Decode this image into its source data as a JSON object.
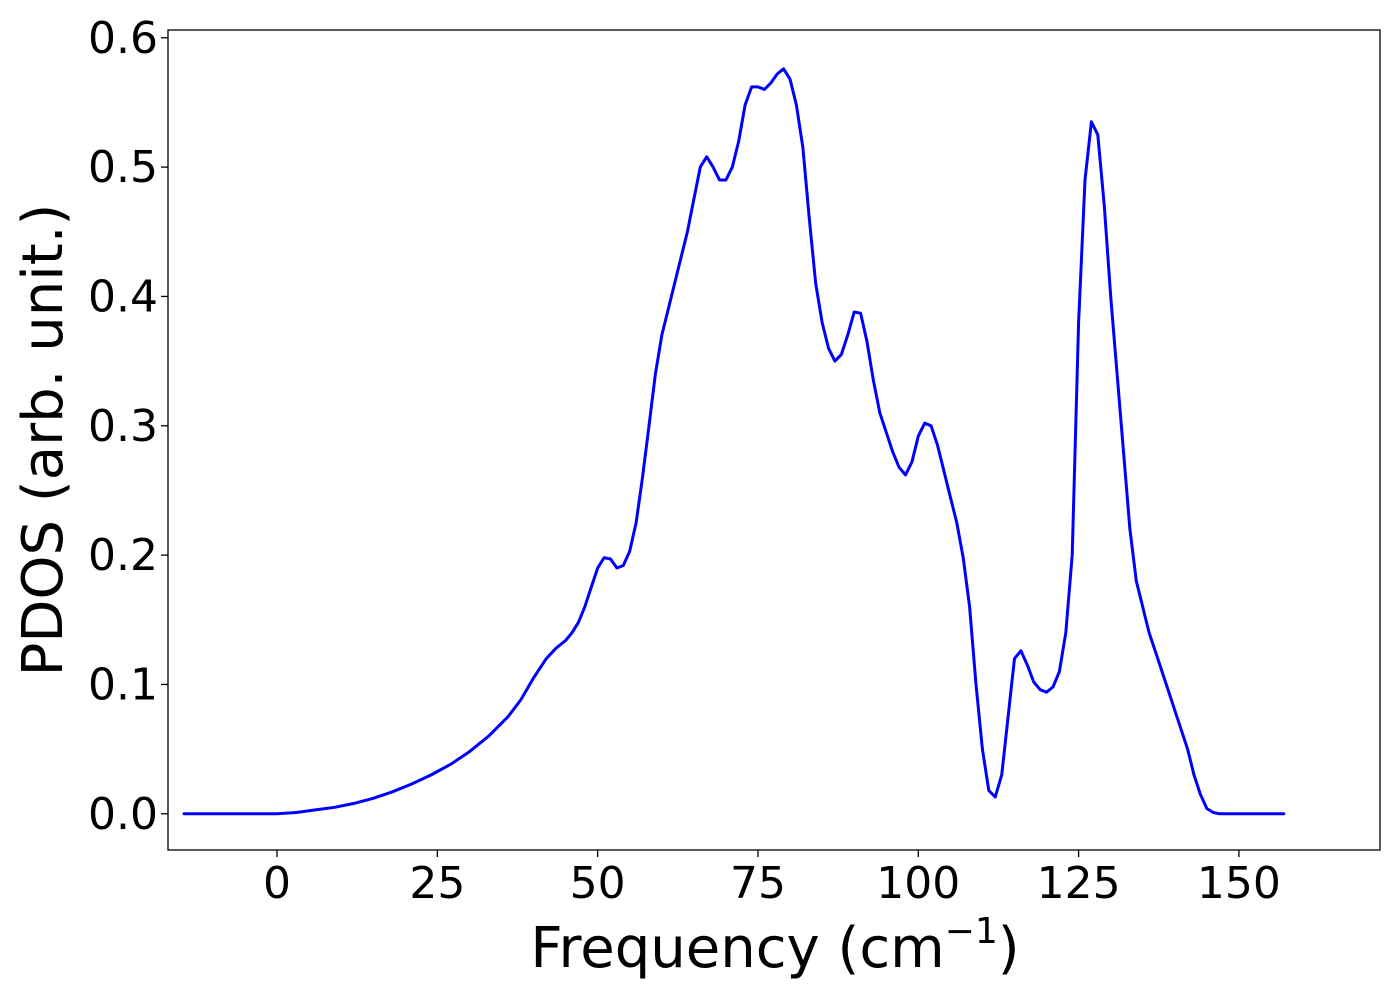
{
  "chart_data": {
    "type": "line",
    "title": "",
    "xlabel": "Frequency (cm",
    "xlabel_superscript": "−1",
    "xlabel_close": ")",
    "ylabel": "PDOS (arb. unit.)",
    "xlim": [
      -17,
      172
    ],
    "ylim": [
      -0.028,
      0.606
    ],
    "x_ticks": [
      0,
      25,
      50,
      75,
      100,
      125,
      150
    ],
    "y_ticks": [
      0.0,
      0.1,
      0.2,
      0.3,
      0.4,
      0.5,
      0.6
    ],
    "x_tick_labels": [
      "0",
      "25",
      "50",
      "75",
      "100",
      "125",
      "150"
    ],
    "y_tick_labels": [
      "0.0",
      "0.1",
      "0.2",
      "0.3",
      "0.4",
      "0.5",
      "0.6"
    ],
    "grid": false,
    "legend": "none",
    "series": [
      {
        "color": "#0000ff",
        "x": [
          -14.5,
          -10,
          -5,
          0,
          3,
          6,
          9,
          12,
          15,
          18,
          21,
          24,
          27,
          30,
          33,
          36,
          38,
          40,
          42,
          43.5,
          45,
          46,
          47,
          48,
          49,
          50,
          51,
          52,
          53,
          54,
          55,
          56,
          57,
          58,
          59,
          60,
          61,
          62,
          63,
          64,
          65,
          66,
          67,
          68,
          69,
          70,
          71,
          72,
          73,
          74,
          75,
          76,
          77,
          78,
          79,
          80,
          81,
          82,
          83,
          84,
          85,
          86,
          87,
          88,
          89,
          90,
          91,
          92,
          93,
          94,
          95,
          96,
          97,
          98,
          99,
          100,
          101,
          102,
          103,
          104,
          105,
          106,
          107,
          108,
          109,
          110,
          111,
          112,
          113,
          114,
          115,
          116,
          117,
          118,
          119,
          120,
          121,
          122,
          123,
          124,
          125,
          126,
          127,
          128,
          129,
          130,
          131,
          132,
          133,
          134,
          135,
          136,
          137,
          138,
          139,
          140,
          141,
          142,
          143,
          144,
          145,
          146,
          147,
          150,
          155,
          157
        ],
        "values": [
          0.0,
          0.0,
          0.0,
          0.0,
          0.001,
          0.003,
          0.005,
          0.008,
          0.012,
          0.017,
          0.023,
          0.03,
          0.038,
          0.048,
          0.06,
          0.075,
          0.088,
          0.105,
          0.12,
          0.128,
          0.134,
          0.14,
          0.148,
          0.16,
          0.175,
          0.19,
          0.198,
          0.197,
          0.19,
          0.192,
          0.203,
          0.225,
          0.26,
          0.3,
          0.34,
          0.37,
          0.39,
          0.41,
          0.43,
          0.45,
          0.475,
          0.5,
          0.508,
          0.5,
          0.49,
          0.49,
          0.5,
          0.52,
          0.548,
          0.562,
          0.562,
          0.56,
          0.565,
          0.572,
          0.576,
          0.568,
          0.548,
          0.515,
          0.46,
          0.41,
          0.38,
          0.36,
          0.35,
          0.355,
          0.37,
          0.388,
          0.387,
          0.365,
          0.335,
          0.31,
          0.295,
          0.28,
          0.268,
          0.262,
          0.272,
          0.292,
          0.302,
          0.3,
          0.285,
          0.265,
          0.245,
          0.225,
          0.198,
          0.16,
          0.1,
          0.05,
          0.018,
          0.013,
          0.03,
          0.075,
          0.12,
          0.126,
          0.115,
          0.102,
          0.096,
          0.094,
          0.098,
          0.11,
          0.14,
          0.2,
          0.38,
          0.49,
          0.535,
          0.525,
          0.47,
          0.4,
          0.34,
          0.28,
          0.22,
          0.18,
          0.16,
          0.14,
          0.125,
          0.11,
          0.095,
          0.08,
          0.065,
          0.05,
          0.03,
          0.015,
          0.004,
          0.001,
          0.0,
          0.0,
          0.0,
          0.0
        ]
      }
    ]
  }
}
